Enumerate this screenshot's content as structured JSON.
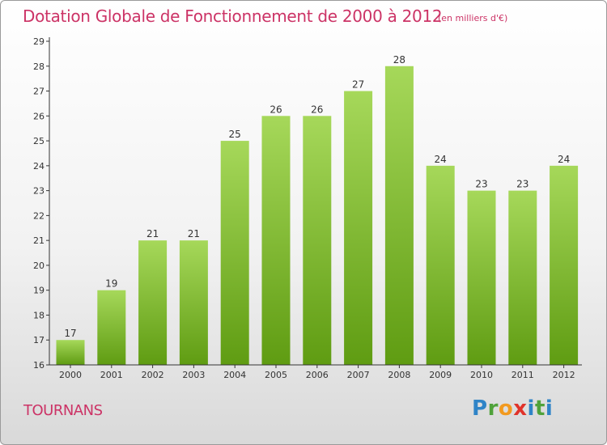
{
  "header": {
    "title": "Dotation Globale de Fonctionnement de 2000 à 2012",
    "subtitle": "(en milliers d'€)"
  },
  "footer": {
    "commune": "TOURNANS",
    "logo_text": "Proxiti"
  },
  "colors": {
    "title": "#cc3366",
    "bar_top": "#a6d85a",
    "bar_bottom": "#5f9c12",
    "axis": "#333333"
  },
  "chart_data": {
    "type": "bar",
    "categories": [
      "2000",
      "2001",
      "2002",
      "2003",
      "2004",
      "2005",
      "2006",
      "2007",
      "2008",
      "2009",
      "2010",
      "2011",
      "2012"
    ],
    "values": [
      17,
      19,
      21,
      21,
      25,
      26,
      26,
      27,
      28,
      24,
      23,
      23,
      24
    ],
    "data_labels": [
      "17",
      "19",
      "21",
      "21",
      "25",
      "26",
      "26",
      "27",
      "28",
      "24",
      "23",
      "23",
      "24"
    ],
    "ylim": [
      16,
      29
    ],
    "yticks": [
      16,
      17,
      18,
      19,
      20,
      21,
      22,
      23,
      24,
      25,
      26,
      27,
      28,
      29
    ],
    "title": "Dotation Globale de Fonctionnement de 2000 à 2012",
    "xlabel": "",
    "ylabel": "",
    "grid": false,
    "legend": "none"
  }
}
